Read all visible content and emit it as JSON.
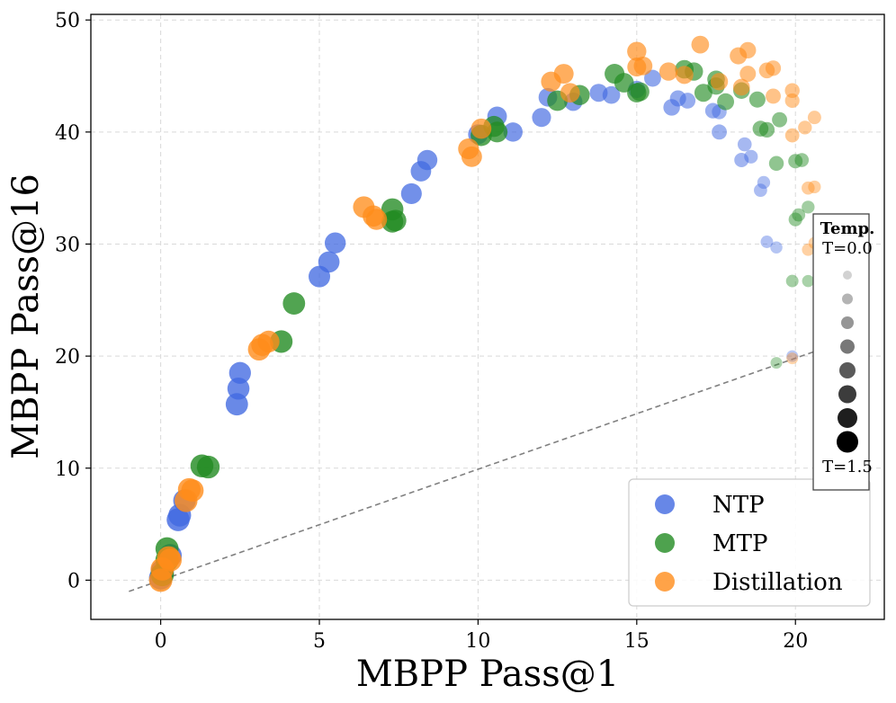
{
  "chart_data": {
    "type": "scatter",
    "xlabel": "MBPP Pass@1",
    "ylabel": "MBPP Pass@16",
    "xlim": [
      -2.2,
      22.8
    ],
    "ylim": [
      -3.5,
      50.5
    ],
    "xticks": [
      0,
      5,
      10,
      15,
      20
    ],
    "yticks": [
      0,
      10,
      20,
      30,
      40,
      50
    ],
    "grid": true,
    "reference_line": {
      "style": "dashed",
      "from": [
        -1,
        -1
      ],
      "to": [
        21.8,
        21.6
      ]
    },
    "legend": {
      "position": "bottom-right",
      "entries": [
        "NTP",
        "MTP",
        "Distillation"
      ]
    },
    "temperature_legend": {
      "title": "Temp.",
      "min_label": "T=0.0",
      "max_label": "T=1.5",
      "levels": 8
    },
    "series": [
      {
        "name": "NTP",
        "color": "#4169e1",
        "points": [
          [
            0.0,
            0.2
          ],
          [
            0.05,
            0.8
          ],
          [
            0.3,
            2.2
          ],
          [
            0.55,
            5.4
          ],
          [
            0.6,
            5.8
          ],
          [
            0.75,
            7.1
          ],
          [
            2.4,
            15.7
          ],
          [
            2.45,
            17.1
          ],
          [
            2.5,
            18.5
          ],
          [
            5.0,
            27.1
          ],
          [
            5.3,
            28.4
          ],
          [
            5.5,
            30.1
          ],
          [
            7.9,
            34.5
          ],
          [
            8.2,
            36.5
          ],
          [
            8.4,
            37.5
          ],
          [
            10.0,
            39.8
          ],
          [
            10.6,
            41.4
          ],
          [
            11.1,
            40.0
          ],
          [
            12.0,
            41.3
          ],
          [
            12.2,
            43.1
          ],
          [
            13.0,
            42.7
          ],
          [
            13.8,
            43.5
          ],
          [
            14.2,
            43.3
          ],
          [
            15.0,
            43.8
          ],
          [
            15.5,
            44.8
          ],
          [
            16.1,
            42.2
          ],
          [
            16.3,
            43.0
          ],
          [
            16.6,
            42.8
          ],
          [
            17.4,
            41.9
          ],
          [
            17.6,
            40.0
          ],
          [
            17.6,
            41.8
          ],
          [
            18.3,
            37.5
          ],
          [
            18.4,
            38.9
          ],
          [
            18.6,
            37.8
          ],
          [
            18.9,
            34.8
          ],
          [
            19.0,
            35.5
          ],
          [
            19.1,
            30.2
          ],
          [
            19.4,
            29.7
          ],
          [
            19.9,
            20.0
          ]
        ]
      },
      {
        "name": "MTP",
        "color": "#228b22",
        "points": [
          [
            0.05,
            0.5
          ],
          [
            0.2,
            1.8
          ],
          [
            0.2,
            2.8
          ],
          [
            1.3,
            10.2
          ],
          [
            1.5,
            10.1
          ],
          [
            3.8,
            21.3
          ],
          [
            4.2,
            24.7
          ],
          [
            7.3,
            33.1
          ],
          [
            7.3,
            32.0
          ],
          [
            7.4,
            32.1
          ],
          [
            10.1,
            39.7
          ],
          [
            10.5,
            40.5
          ],
          [
            10.6,
            40.0
          ],
          [
            12.5,
            42.8
          ],
          [
            13.2,
            43.3
          ],
          [
            14.3,
            45.2
          ],
          [
            14.6,
            44.4
          ],
          [
            15.0,
            43.5
          ],
          [
            15.1,
            43.6
          ],
          [
            16.5,
            45.6
          ],
          [
            16.8,
            45.4
          ],
          [
            17.1,
            43.5
          ],
          [
            17.5,
            44.7
          ],
          [
            17.5,
            44.1
          ],
          [
            17.8,
            42.7
          ],
          [
            18.3,
            43.7
          ],
          [
            18.8,
            42.9
          ],
          [
            18.9,
            40.3
          ],
          [
            19.1,
            40.2
          ],
          [
            19.5,
            41.1
          ],
          [
            19.4,
            37.2
          ],
          [
            20.0,
            37.4
          ],
          [
            20.2,
            37.5
          ],
          [
            20.0,
            32.2
          ],
          [
            20.1,
            32.6
          ],
          [
            20.4,
            33.3
          ],
          [
            19.9,
            26.7
          ],
          [
            20.4,
            26.7
          ],
          [
            19.4,
            19.4
          ]
        ]
      },
      {
        "name": "Distillation",
        "color": "#ff8c1a",
        "points": [
          [
            0.0,
            0.0
          ],
          [
            0.05,
            1.0
          ],
          [
            0.25,
            2.0
          ],
          [
            0.3,
            1.8
          ],
          [
            0.8,
            7.1
          ],
          [
            0.9,
            8.1
          ],
          [
            1.0,
            8.0
          ],
          [
            3.1,
            20.6
          ],
          [
            3.2,
            21.0
          ],
          [
            3.4,
            21.3
          ],
          [
            6.4,
            33.3
          ],
          [
            6.7,
            32.5
          ],
          [
            6.8,
            32.2
          ],
          [
            9.7,
            38.5
          ],
          [
            9.8,
            37.8
          ],
          [
            10.1,
            40.3
          ],
          [
            12.3,
            44.5
          ],
          [
            12.7,
            45.2
          ],
          [
            12.9,
            43.5
          ],
          [
            15.0,
            47.2
          ],
          [
            15.0,
            45.8
          ],
          [
            15.2,
            45.9
          ],
          [
            16.0,
            45.4
          ],
          [
            16.5,
            45.1
          ],
          [
            17.0,
            47.8
          ],
          [
            17.6,
            44.5
          ],
          [
            18.2,
            46.8
          ],
          [
            18.3,
            44.0
          ],
          [
            18.5,
            47.3
          ],
          [
            18.5,
            45.2
          ],
          [
            19.1,
            45.5
          ],
          [
            19.3,
            45.7
          ],
          [
            19.3,
            43.2
          ],
          [
            19.9,
            43.7
          ],
          [
            19.9,
            42.8
          ],
          [
            19.9,
            39.7
          ],
          [
            20.3,
            40.4
          ],
          [
            20.6,
            41.3
          ],
          [
            20.4,
            35.0
          ],
          [
            20.6,
            35.1
          ],
          [
            20.4,
            29.5
          ],
          [
            20.6,
            30.1
          ],
          [
            19.9,
            19.8
          ]
        ]
      }
    ]
  }
}
